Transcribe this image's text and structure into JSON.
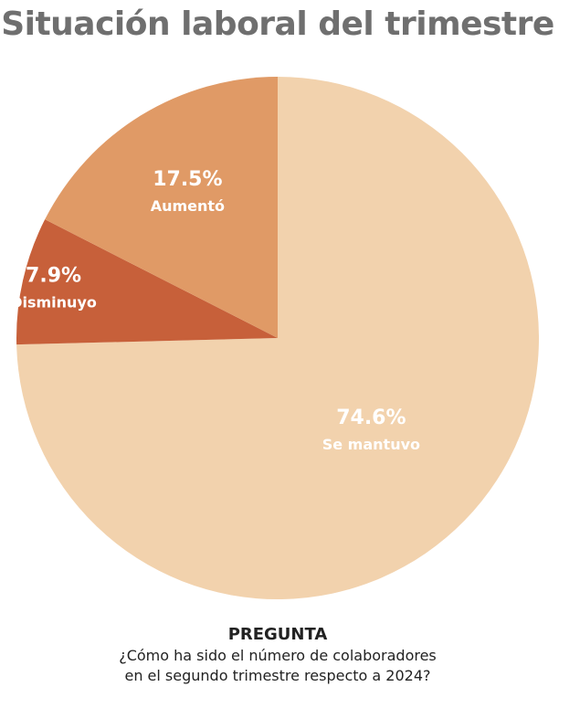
{
  "title": "Situación laboral del trimestre",
  "chart_data": {
    "type": "pie",
    "slices": [
      {
        "label": "Se mantuvo",
        "value": 74.6,
        "display": "74.6%",
        "color": "#f2d2ad"
      },
      {
        "label": "Disminuyo",
        "value": 7.9,
        "display": "7.9%",
        "color": "#c7603a"
      },
      {
        "label": "Aumentó",
        "value": 17.5,
        "display": "17.5%",
        "color": "#e09a66"
      }
    ],
    "start_angle_deg": 0,
    "direction": "clockwise",
    "legend": "none",
    "labels_inside": true
  },
  "question": {
    "heading": "PREGUNTA",
    "lines": [
      "¿Cómo ha sido el número de colaboradores",
      "en el segundo trimestre respecto a 2024?"
    ]
  }
}
